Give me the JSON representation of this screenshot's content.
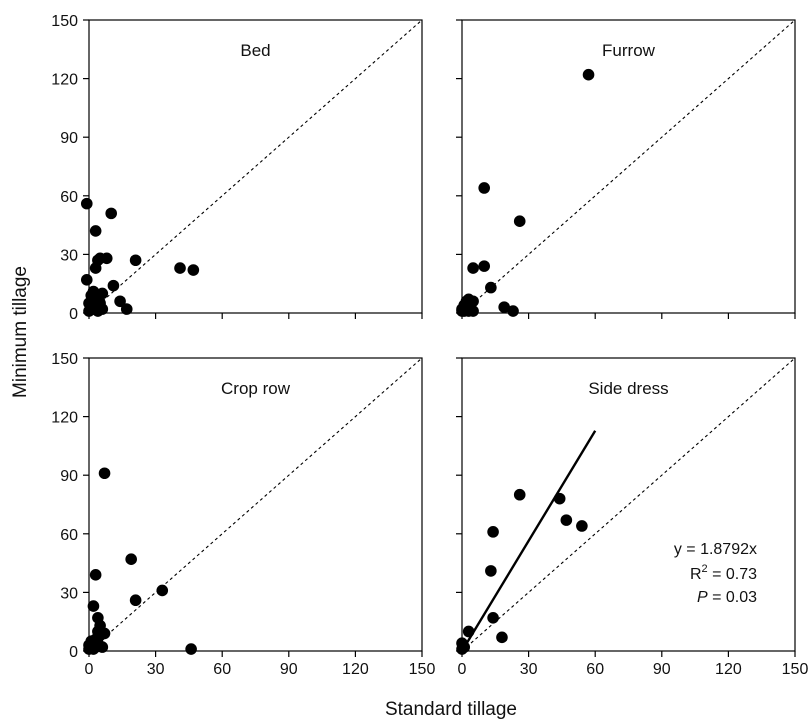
{
  "figure": {
    "xlabel": "Standard tillage",
    "ylabel": "Minimum tillage"
  },
  "chart_data": [
    {
      "type": "scatter",
      "title": "Bed",
      "xlim": [
        0,
        150
      ],
      "ylim": [
        0,
        150
      ],
      "xticks": [
        "0",
        "30",
        "60",
        "90",
        "120",
        "150"
      ],
      "yticks": [
        "0",
        "30",
        "60",
        "90",
        "120",
        "150"
      ],
      "reference_line": "1:1 dashed",
      "points": [
        {
          "x": -1,
          "y": 56
        },
        {
          "x": -1,
          "y": 17
        },
        {
          "x": 0,
          "y": 5
        },
        {
          "x": 0,
          "y": 1
        },
        {
          "x": 1,
          "y": 3
        },
        {
          "x": 1,
          "y": 9
        },
        {
          "x": 2,
          "y": 11
        },
        {
          "x": 2,
          "y": 2
        },
        {
          "x": 3,
          "y": 4
        },
        {
          "x": 3,
          "y": 42
        },
        {
          "x": 3,
          "y": 23
        },
        {
          "x": 4,
          "y": 27
        },
        {
          "x": 4,
          "y": 8
        },
        {
          "x": 4,
          "y": 1
        },
        {
          "x": 5,
          "y": 3
        },
        {
          "x": 5,
          "y": 5
        },
        {
          "x": 5,
          "y": 28
        },
        {
          "x": 6,
          "y": 10
        },
        {
          "x": 6,
          "y": 2
        },
        {
          "x": 8,
          "y": 28
        },
        {
          "x": 10,
          "y": 51
        },
        {
          "x": 11,
          "y": 14
        },
        {
          "x": 14,
          "y": 6
        },
        {
          "x": 17,
          "y": 2
        },
        {
          "x": 21,
          "y": 27
        },
        {
          "x": 41,
          "y": 23
        },
        {
          "x": 47,
          "y": 22
        }
      ]
    },
    {
      "type": "scatter",
      "title": "Furrow",
      "xlim": [
        0,
        150
      ],
      "ylim": [
        0,
        150
      ],
      "xticks": [
        "0",
        "30",
        "60",
        "90",
        "120",
        "150"
      ],
      "yticks": [
        "0",
        "30",
        "60",
        "90",
        "120",
        "150"
      ],
      "reference_line": "1:1 dashed",
      "points": [
        {
          "x": 57,
          "y": 122
        },
        {
          "x": 10,
          "y": 64
        },
        {
          "x": 26,
          "y": 47
        },
        {
          "x": 5,
          "y": 23
        },
        {
          "x": 10,
          "y": 24
        },
        {
          "x": 13,
          "y": 13
        },
        {
          "x": 19,
          "y": 3
        },
        {
          "x": 23,
          "y": 1
        },
        {
          "x": 0,
          "y": 1
        },
        {
          "x": 0,
          "y": 2
        },
        {
          "x": 1,
          "y": 4
        },
        {
          "x": 1,
          "y": 1
        },
        {
          "x": 2,
          "y": 6
        },
        {
          "x": 2,
          "y": 3
        },
        {
          "x": 3,
          "y": 1
        },
        {
          "x": 3,
          "y": 7
        },
        {
          "x": 4,
          "y": 2
        },
        {
          "x": 5,
          "y": 1
        },
        {
          "x": 5,
          "y": 6
        }
      ]
    },
    {
      "type": "scatter",
      "title": "Crop row",
      "xlim": [
        0,
        150
      ],
      "ylim": [
        0,
        150
      ],
      "xticks": [
        "0",
        "30",
        "60",
        "90",
        "120",
        "150"
      ],
      "yticks": [
        "0",
        "30",
        "60",
        "90",
        "120",
        "150"
      ],
      "reference_line": "1:1 dashed",
      "points": [
        {
          "x": 7,
          "y": 91
        },
        {
          "x": 19,
          "y": 47
        },
        {
          "x": 3,
          "y": 39
        },
        {
          "x": 33,
          "y": 31
        },
        {
          "x": 21,
          "y": 26
        },
        {
          "x": 2,
          "y": 23
        },
        {
          "x": 4,
          "y": 17
        },
        {
          "x": 5,
          "y": 13
        },
        {
          "x": 4,
          "y": 10
        },
        {
          "x": 7,
          "y": 9
        },
        {
          "x": 46,
          "y": 1
        },
        {
          "x": 0,
          "y": 1
        },
        {
          "x": 0,
          "y": 3
        },
        {
          "x": 1,
          "y": 2
        },
        {
          "x": 1,
          "y": 5
        },
        {
          "x": 2,
          "y": 1
        },
        {
          "x": 3,
          "y": 6
        },
        {
          "x": 3,
          "y": 2
        },
        {
          "x": 4,
          "y": 4
        },
        {
          "x": 6,
          "y": 2
        },
        {
          "x": 5,
          "y": 8
        }
      ]
    },
    {
      "type": "scatter",
      "title": "Side dress",
      "xlim": [
        0,
        150
      ],
      "ylim": [
        0,
        150
      ],
      "xticks": [
        "0",
        "30",
        "60",
        "90",
        "120",
        "150"
      ],
      "yticks": [
        "0",
        "30",
        "60",
        "90",
        "120",
        "150"
      ],
      "reference_line": "1:1 dashed",
      "points": [
        {
          "x": 26,
          "y": 80
        },
        {
          "x": 44,
          "y": 78
        },
        {
          "x": 47,
          "y": 67
        },
        {
          "x": 54,
          "y": 64
        },
        {
          "x": 14,
          "y": 61
        },
        {
          "x": 13,
          "y": 41
        },
        {
          "x": 14,
          "y": 17
        },
        {
          "x": 18,
          "y": 7
        },
        {
          "x": 3,
          "y": 10
        },
        {
          "x": 0,
          "y": 4
        },
        {
          "x": 0,
          "y": 1
        },
        {
          "x": 1,
          "y": 2
        }
      ],
      "fit_line": {
        "slope": 1.8792,
        "x": [
          0,
          60
        ]
      },
      "equation": "y = 1.8792x",
      "r2_label": "R",
      "r2_value": "= 0.73",
      "p_label": "P",
      "p_value": "= 0.03"
    }
  ]
}
